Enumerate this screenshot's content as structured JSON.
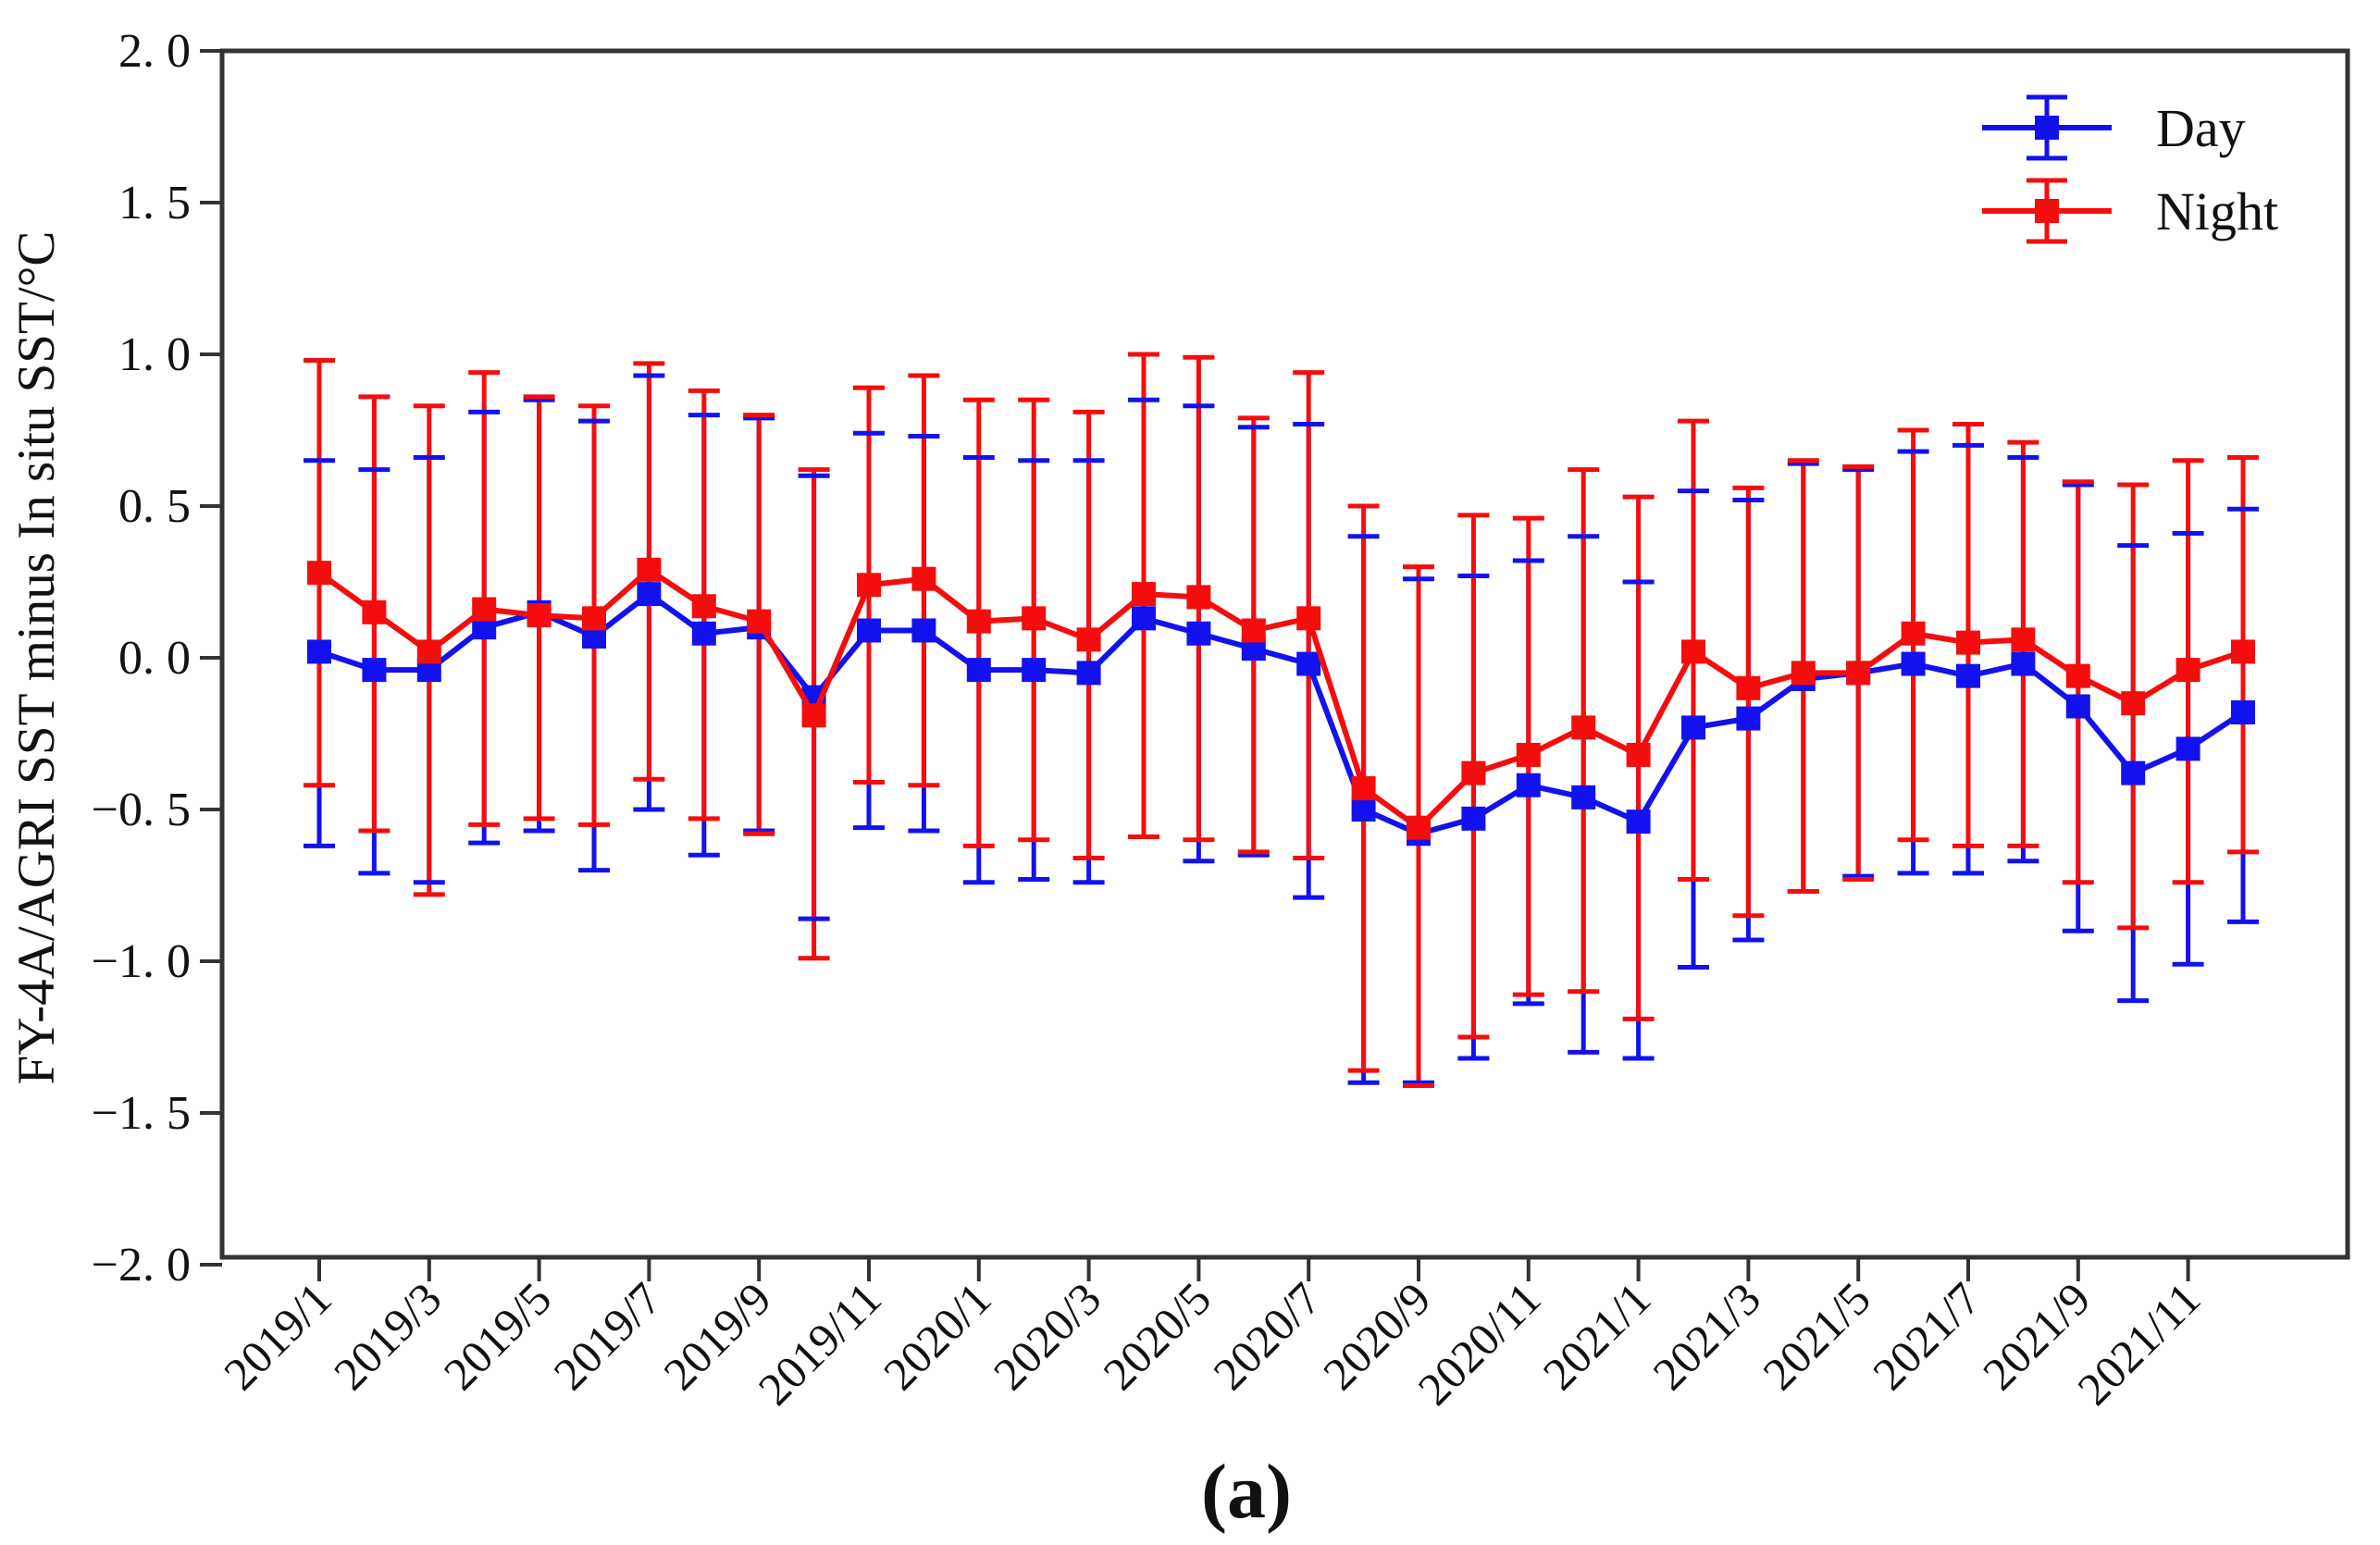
{
  "figure": {
    "background": "#ffffff",
    "caption": "(a)"
  },
  "chart_data": {
    "type": "line",
    "subtype": "errorbar",
    "title": "",
    "xlabel": "",
    "ylabel": "FY-4A/AGRI SST minus In situ SST/°C",
    "ylim": [
      -2.0,
      2.0
    ],
    "grid": false,
    "legend_position": "top-right",
    "axis_color": "#333333",
    "ytick_values": [
      2.0,
      1.5,
      1.0,
      0.5,
      0.0,
      -0.5,
      -1.0,
      -1.5,
      -2.0
    ],
    "ytick_labels": [
      "2. 0",
      "1. 5",
      "1. 0",
      "0. 5",
      "0. 0",
      "−0. 5",
      "−1. 0",
      "−1. 5",
      "−2. 0"
    ],
    "categories": [
      "2019/1",
      "2019/2",
      "2019/3",
      "2019/4",
      "2019/5",
      "2019/6",
      "2019/7",
      "2019/8",
      "2019/9",
      "2019/10",
      "2019/11",
      "2019/12",
      "2020/1",
      "2020/2",
      "2020/3",
      "2020/4",
      "2020/5",
      "2020/6",
      "2020/7",
      "2020/8",
      "2020/9",
      "2020/10",
      "2020/11",
      "2020/12",
      "2021/1",
      "2021/2",
      "2021/3",
      "2021/4",
      "2021/5",
      "2021/6",
      "2021/7",
      "2021/8",
      "2021/9",
      "2021/10",
      "2021/11",
      "2021/12"
    ],
    "xtick_labels": [
      "2019/1",
      "2019/3",
      "2019/5",
      "2019/7",
      "2019/9",
      "2019/11",
      "2020/1",
      "2020/3",
      "2020/5",
      "2020/7",
      "2020/9",
      "2020/11",
      "2021/1",
      "2021/3",
      "2021/5",
      "2021/7",
      "2021/9",
      "2021/11"
    ],
    "series": [
      {
        "name": "Day",
        "color": "#1212ee",
        "values": [
          0.02,
          -0.04,
          -0.04,
          0.1,
          0.15,
          0.07,
          0.21,
          0.08,
          0.1,
          -0.13,
          0.09,
          0.09,
          -0.04,
          -0.04,
          -0.05,
          0.13,
          0.08,
          0.03,
          -0.02,
          -0.5,
          -0.58,
          -0.53,
          -0.42,
          -0.46,
          -0.54,
          -0.23,
          -0.2,
          -0.07,
          -0.05,
          -0.02,
          -0.06,
          -0.02,
          -0.16,
          -0.38,
          -0.3,
          -0.18
        ],
        "upper": [
          0.65,
          0.62,
          0.66,
          0.81,
          0.85,
          0.78,
          0.93,
          0.8,
          0.79,
          0.6,
          0.74,
          0.73,
          0.66,
          0.65,
          0.65,
          0.85,
          0.83,
          0.76,
          0.77,
          0.4,
          0.26,
          0.27,
          0.32,
          0.4,
          0.25,
          0.55,
          0.52,
          0.64,
          0.62,
          0.68,
          0.7,
          0.66,
          0.57,
          0.37,
          0.41,
          0.49
        ],
        "lower": [
          -0.62,
          -0.71,
          -0.74,
          -0.61,
          -0.57,
          -0.7,
          -0.5,
          -0.65,
          -0.57,
          -0.86,
          -0.56,
          -0.57,
          -0.74,
          -0.73,
          -0.74,
          -0.59,
          -0.67,
          -0.65,
          -0.79,
          -1.4,
          -1.4,
          -1.32,
          -1.14,
          -1.3,
          -1.32,
          -1.02,
          -0.93,
          -0.77,
          -0.72,
          -0.71,
          -0.71,
          -0.67,
          -0.9,
          -1.13,
          -1.01,
          -0.87
        ]
      },
      {
        "name": "Night",
        "color": "#f50d0d",
        "values": [
          0.28,
          0.15,
          0.02,
          0.16,
          0.14,
          0.13,
          0.29,
          0.17,
          0.12,
          -0.19,
          0.24,
          0.26,
          0.12,
          0.13,
          0.06,
          0.21,
          0.2,
          0.09,
          0.13,
          -0.43,
          -0.56,
          -0.38,
          -0.32,
          -0.23,
          -0.32,
          0.02,
          -0.1,
          -0.05,
          -0.05,
          0.08,
          0.05,
          0.06,
          -0.06,
          -0.15,
          -0.04,
          0.02
        ],
        "upper": [
          0.98,
          0.86,
          0.83,
          0.94,
          0.86,
          0.83,
          0.97,
          0.88,
          0.8,
          0.62,
          0.89,
          0.93,
          0.85,
          0.85,
          0.81,
          1.0,
          0.99,
          0.79,
          0.94,
          0.5,
          0.3,
          0.47,
          0.46,
          0.62,
          0.53,
          0.78,
          0.56,
          0.65,
          0.63,
          0.75,
          0.77,
          0.71,
          0.58,
          0.57,
          0.65,
          0.66
        ],
        "lower": [
          -0.42,
          -0.57,
          -0.78,
          -0.55,
          -0.53,
          -0.55,
          -0.4,
          -0.53,
          -0.58,
          -0.99,
          -0.41,
          -0.42,
          -0.62,
          -0.6,
          -0.66,
          -0.59,
          -0.6,
          -0.64,
          -0.66,
          -1.36,
          -1.41,
          -1.25,
          -1.11,
          -1.1,
          -1.19,
          -0.73,
          -0.85,
          -0.77,
          -0.73,
          -0.6,
          -0.62,
          -0.62,
          -0.74,
          -0.89,
          -0.74,
          -0.64
        ]
      }
    ]
  }
}
